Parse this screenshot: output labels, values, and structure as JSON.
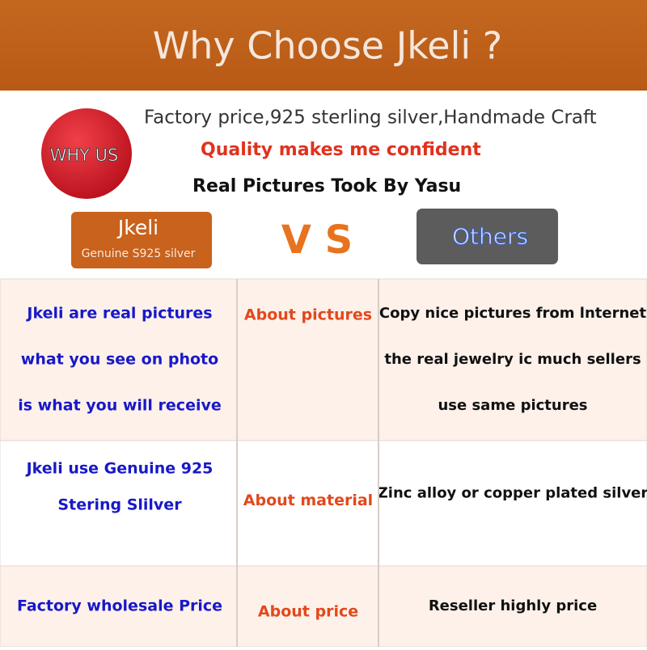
{
  "header": {
    "title": "Why Choose Jkeli ?"
  },
  "intro": {
    "badge": "WHY US",
    "lines": [
      "Factory price,925 sterling silver,Handmade Craft",
      "Quality makes me confident",
      "Real Pictures Took By Yasu"
    ]
  },
  "compare": {
    "left": {
      "name": "Jkeli",
      "subtitle": "Genuine S925 silver"
    },
    "vs": "V S",
    "right": {
      "name": "Others"
    }
  },
  "table": {
    "rows": [
      {
        "left": [
          "Jkeli are real pictures",
          "what you see on photo",
          "is what you will receive"
        ],
        "topic": "About pictures",
        "right": [
          "Copy nice pictures from lnternet",
          "the real jewelry ic much sellers",
          "use same pictures"
        ]
      },
      {
        "left": [
          "Jkeli use Genuine 925",
          "Stering Slilver"
        ],
        "topic": "About material",
        "right": [
          "Zinc alloy or copper plated silver"
        ]
      },
      {
        "left": [
          "Factory wholesale Price"
        ],
        "topic": "About price",
        "right": [
          "Reseller highly price"
        ]
      }
    ]
  }
}
